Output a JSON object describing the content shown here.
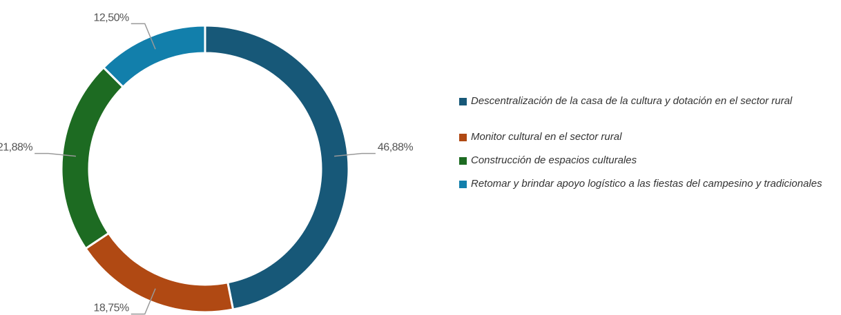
{
  "chart_data": {
    "type": "pie",
    "categories": [
      "Descentralización de la casa de la cultura y dotación en el sector rural",
      "Monitor cultural en el sector rural",
      "Construcción de espacios culturales",
      "Retomar y brindar apoyo logístico a las fiestas del campesino y tradicionales"
    ],
    "values": [
      46.88,
      18.75,
      21.88,
      12.5
    ],
    "value_labels": [
      "46,88%",
      "18,75%",
      "21,88%",
      "12,50%"
    ],
    "colors": [
      "#175878",
      "#b04913",
      "#1d6b22",
      "#127fab"
    ],
    "legend": "right"
  }
}
